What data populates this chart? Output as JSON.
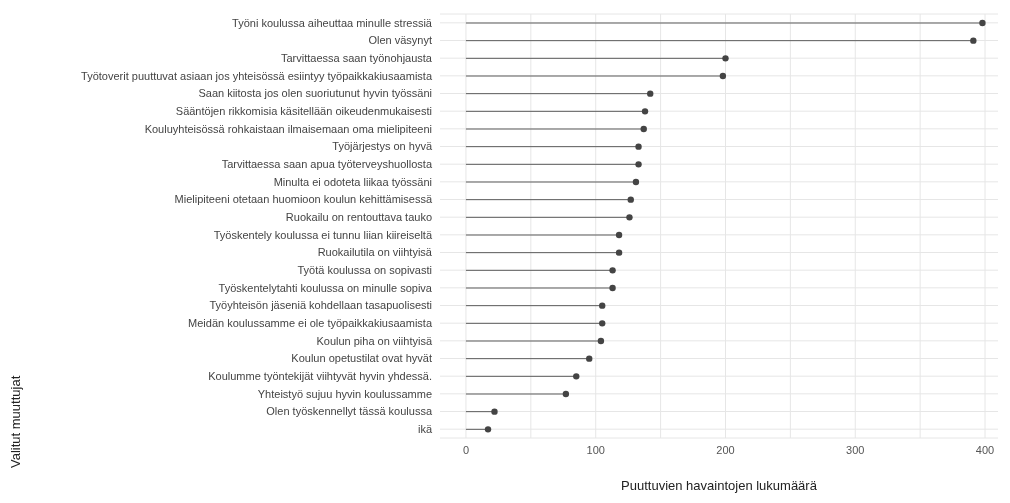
{
  "chart_data": {
    "type": "lollipop",
    "orientation": "horizontal",
    "xlabel": "Puuttuvien havaintojen lukumäärä",
    "ylabel": "Valitut muuttujat",
    "categories": [
      "Työni koulussa aiheuttaa minulle stressiä",
      "Olen väsynyt",
      "Tarvittaessa saan työnohjausta",
      "Työtoverit puuttuvat asiaan jos yhteisössä esiintyy työpaikkakiusaamista",
      "Saan kiitosta jos olen suoriutunut hyvin työssäni",
      "Sääntöjen rikkomisia käsitellään oikeudenmukaisesti",
      "Kouluyhteisössä rohkaistaan ilmaisemaan oma mielipiteeni",
      "Työjärjestys on hyvä",
      "Tarvittaessa saan apua työterveyshuollosta",
      "Minulta ei odoteta liikaa työssäni",
      "Mielipiteeni otetaan huomioon koulun kehittämisessä",
      "Ruokailu on rentouttava tauko",
      "Työskentely koulussa ei tunnu liian kiireiseltä",
      "Ruokailutila on viihtyisä",
      "Työtä koulussa on sopivasti",
      "Työskentelytahti koulussa on minulle sopiva",
      "Työyhteisön jäseniä kohdellaan tasapuolisesti",
      "Meidän koulussamme ei ole työpaikkakiusaamista",
      "Koulun piha on viihtyisä",
      "Koulun opetustilat ovat hyvät",
      "Koulumme työntekijät viihtyvät hyvin yhdessä.",
      "Yhteistyö sujuu hyvin koulussamme",
      "Olen työskennellyt tässä koulussa",
      "ikä"
    ],
    "values": [
      398,
      391,
      200,
      198,
      142,
      138,
      137,
      133,
      133,
      131,
      127,
      126,
      118,
      118,
      113,
      113,
      105,
      105,
      104,
      95,
      85,
      77,
      22,
      17
    ],
    "color": "#444444",
    "xlim": [
      -20,
      410
    ],
    "xticks": [
      0,
      {
        "value": 50,
        "label": null
      },
      100,
      {
        "value": 150,
        "label": null
      },
      200,
      {
        "value": 250,
        "label": null
      },
      300,
      {
        "value": 350,
        "label": null
      },
      400
    ],
    "grid": true,
    "marker": "circle"
  }
}
